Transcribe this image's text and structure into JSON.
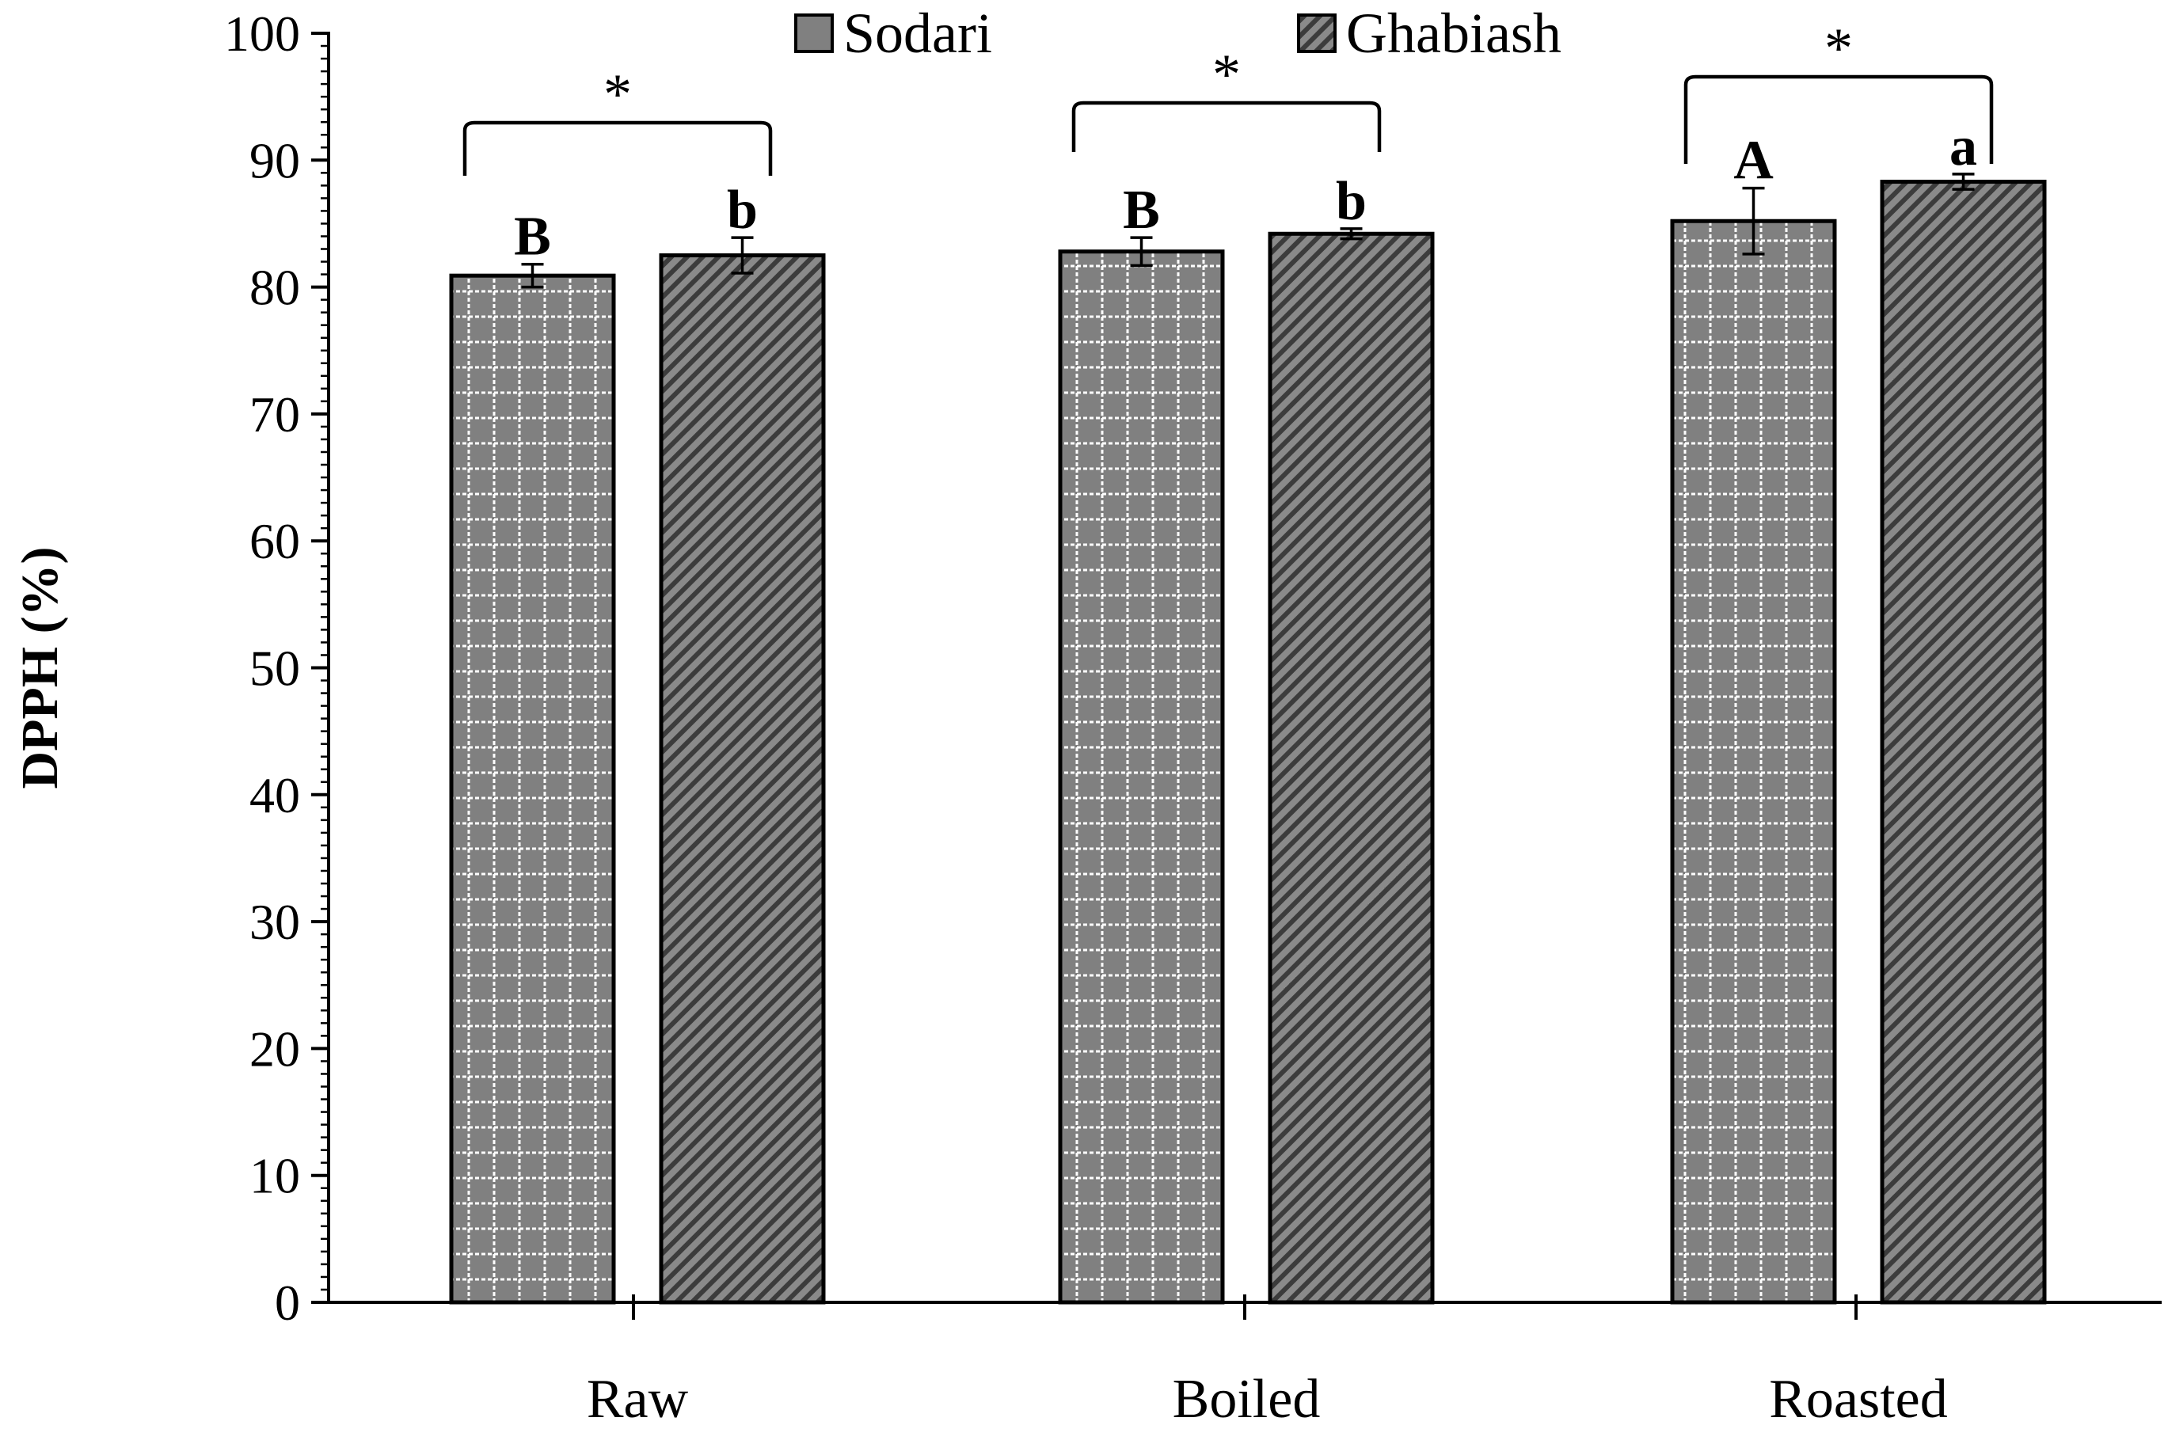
{
  "chart_data": {
    "type": "bar",
    "title": "",
    "xlabel": "",
    "ylabel": "DPPH (%)",
    "ylim": [
      0,
      100
    ],
    "yticks": [
      0,
      10,
      20,
      30,
      40,
      50,
      60,
      70,
      80,
      90,
      100
    ],
    "grid": false,
    "legend_position": "top-center",
    "categories": [
      "Raw",
      "Boiled",
      "Roasted"
    ],
    "series": [
      {
        "name": "Sodari",
        "pattern": "grid",
        "values": [
          80.9,
          82.8,
          85.2
        ],
        "errors": [
          0.9,
          1.1,
          2.6
        ],
        "letters": [
          "B",
          "B",
          "A"
        ]
      },
      {
        "name": "Ghabiash",
        "pattern": "diagonal",
        "values": [
          82.5,
          84.2,
          88.3
        ],
        "errors": [
          1.4,
          0.4,
          0.6
        ],
        "letters": [
          "b",
          "b",
          "a"
        ]
      }
    ],
    "significance": [
      "*",
      "*",
      "*"
    ],
    "colors": {
      "bar_fill": "#808080",
      "bar_stroke": "#000000",
      "pattern_light": "#ffffff",
      "pattern_dark": "#3c3c3c",
      "axis": "#000000"
    }
  }
}
